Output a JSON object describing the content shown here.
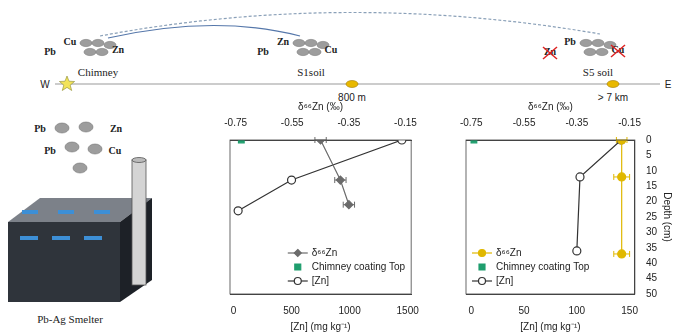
{
  "diagram": {
    "sites": [
      {
        "label": "Chimney",
        "elements": [
          "Cu",
          "Pb",
          "Zn"
        ],
        "crossed": []
      },
      {
        "label": "S1soil",
        "elements": [
          "Zn",
          "Pb",
          "Cu"
        ],
        "crossed": []
      },
      {
        "label": "S5 soil",
        "elements": [
          "Pb",
          "Zn",
          "Cu"
        ],
        "crossed": [
          "Zn",
          "Cu"
        ]
      }
    ],
    "transect": {
      "start": "W",
      "end": "E",
      "distances": [
        "800 m",
        "> 7 km"
      ]
    },
    "emissions": [
      "Pb",
      "Zn",
      "Pb",
      "Cu"
    ],
    "source": "Pb-Ag Smelter"
  },
  "chart_data": [
    {
      "type": "scatter",
      "xlabel": "[Zn] (mg kg⁻¹)",
      "x2label": "δ⁶⁶Zn (‰)",
      "xlim": [
        -30,
        1530
      ],
      "xticks": [
        0,
        500,
        1000,
        1500
      ],
      "x2lim": [
        -0.77,
        -0.13
      ],
      "x2ticks": [
        -0.75,
        -0.55,
        -0.35,
        -0.15
      ],
      "ylim": [
        0,
        50
      ],
      "tick_labels": "x",
      "grid": false,
      "legend": "lower right",
      "series": [
        {
          "name": "δ⁶⁶Zn",
          "color": "#6b6b6b",
          "marker": "diamond",
          "line_style": "solid",
          "axis": "x2",
          "x": [
            -0.45,
            -0.38,
            -0.35
          ],
          "y": [
            0,
            13,
            21
          ],
          "x_err": [
            0.02,
            0.02,
            0.02
          ]
        },
        {
          "name": "Chimney coating Top",
          "color": "#1f9e6e",
          "marker": "square",
          "line_style": "none",
          "axis": "x2",
          "x": [
            -0.73
          ],
          "y": [
            0
          ]
        },
        {
          "name": "[Zn]",
          "color": "#333333",
          "marker": "open_circle",
          "line_style": "solid",
          "axis": "x",
          "x": [
            1450,
            500,
            40
          ],
          "y": [
            0,
            13,
            23
          ]
        }
      ]
    },
    {
      "type": "scatter",
      "xlabel": "[Zn] (mg kg⁻¹)",
      "x2label": "δ⁶⁶Zn (‰)",
      "ylabel": "Depth (cm)",
      "xlim": [
        -5,
        155
      ],
      "xticks": [
        0,
        50,
        100,
        150
      ],
      "x2lim": [
        -0.77,
        -0.13
      ],
      "x2ticks": [
        -0.75,
        -0.55,
        -0.35,
        -0.15
      ],
      "ylim": [
        0,
        50
      ],
      "yticks": [
        0,
        5,
        10,
        15,
        20,
        25,
        30,
        35,
        40,
        45,
        50
      ],
      "grid": false,
      "legend": "lower left",
      "series": [
        {
          "name": "δ⁶⁶Zn",
          "color": "#e0b800",
          "marker": "circle",
          "line_style": "solid",
          "axis": "x2",
          "x": [
            -0.18,
            -0.18,
            -0.18
          ],
          "y": [
            0,
            12,
            37
          ],
          "x_err": [
            0.02,
            0.03,
            0.03
          ]
        },
        {
          "name": "Chimney coating Top",
          "color": "#1f9e6e",
          "marker": "square",
          "line_style": "none",
          "axis": "x2",
          "x": [
            -0.74
          ],
          "y": [
            0
          ]
        },
        {
          "name": "[Zn]",
          "color": "#333333",
          "marker": "open_circle",
          "line_style": "solid",
          "axis": "x",
          "x": [
            142,
            103,
            100
          ],
          "y": [
            0,
            12,
            36
          ]
        }
      ]
    }
  ]
}
